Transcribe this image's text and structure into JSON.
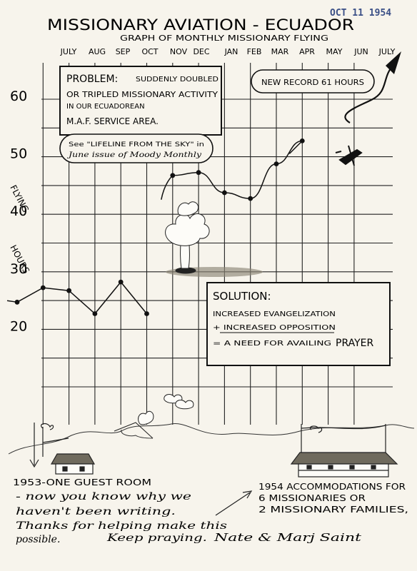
{
  "stamp_date": "OCT 11 1954",
  "chart_data": {
    "type": "line",
    "title": "MISSIONARY AVIATION - ECUADOR",
    "subtitle": "GRAPH OF MONTHLY MISSIONARY FLYING",
    "xlabel": "",
    "ylabel": "FLYING HOURS",
    "ylim": [
      17,
      66
    ],
    "yticks": [
      20,
      30,
      40,
      50,
      60
    ],
    "grid": true,
    "categories": [
      "JULY",
      "AUG",
      "SEP",
      "OCT",
      "NOV",
      "DEC",
      "JAN",
      "FEB",
      "MAR",
      "APR",
      "MAY",
      "JUN",
      "JULY"
    ],
    "series": [
      {
        "name": "",
        "x": [
          0,
          1,
          2,
          3,
          4,
          5,
          6,
          7,
          8,
          9,
          10,
          11
        ],
        "values": [
          24,
          26.5,
          26,
          22,
          27.5,
          22,
          46,
          46.5,
          43,
          42,
          48,
          52
        ],
        "hand_labels": [
          "",
          "",
          "",
          "",
          "",
          "",
          "",
          "",
          "",
          "",
          "",
          ""
        ]
      }
    ],
    "annotations": {
      "record": "NEW RECORD 61 HOURS",
      "problem": {
        "title": "PROBLEM:",
        "line1": "SUDDENLY DOUBLED",
        "line2": "OR TRIPLED MISSIONARY ACTIVITY",
        "line3": "IN OUR ECUADOREAN",
        "line4": "M.A.F. SERVICE AREA."
      },
      "see_note": {
        "line1": "See \"LIFELINE FROM THE SKY\" in",
        "line2": "June issue of Moody Monthly"
      },
      "solution": {
        "title": "SOLUTION:",
        "line1": "INCREASED EVANGELIZATION",
        "line2": "+ INCREASED OPPOSITION",
        "line3": "= A NEED FOR AVAILING",
        "line3_emph": "PRAYER"
      }
    }
  },
  "bottom": {
    "left_caption": "1953-ONE GUEST ROOM",
    "right_caption_line1": "1954 ACCOMMODATIONS FOR",
    "right_caption_line2": "6 MISSIONARIES OR",
    "right_caption_line3": "2 MISSIONARY FAMILIES,",
    "note_line1": "- now you know why we",
    "note_line2": "haven't been writing.",
    "note_line3": "Thanks for helping make this",
    "note_line4": "possible.",
    "note_line5": "Keep praying.",
    "signature": "Nate & Marj Saint"
  }
}
